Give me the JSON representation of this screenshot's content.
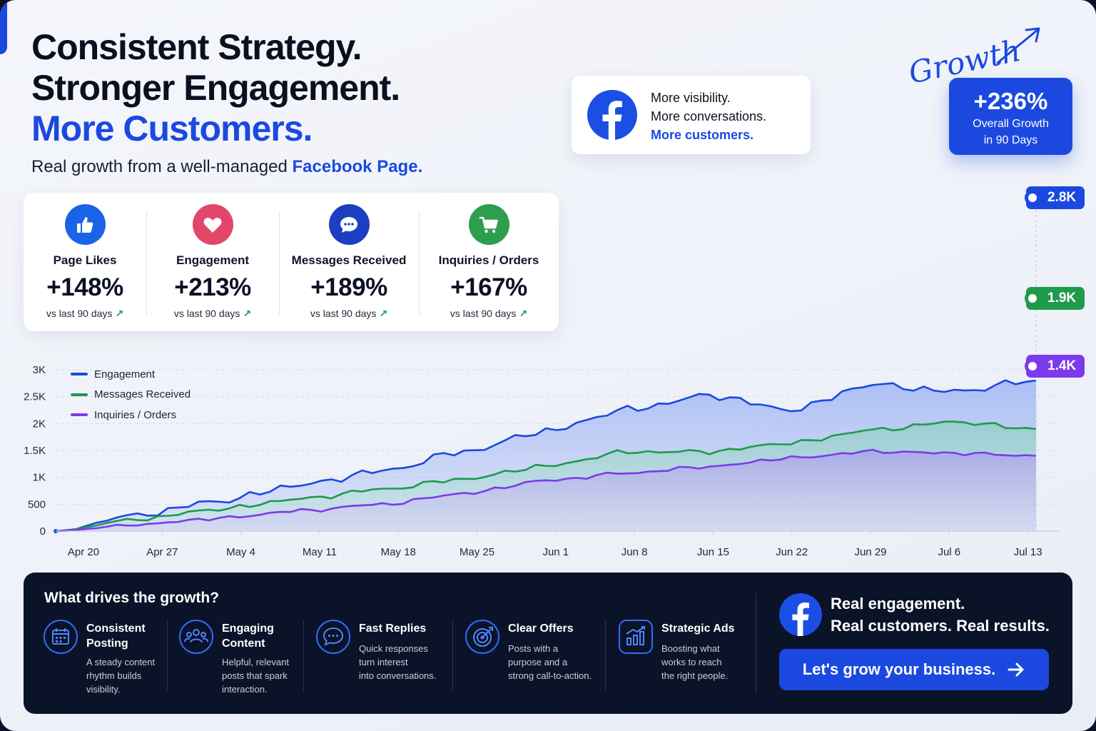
{
  "header": {
    "title_line1": "Consistent Strategy.",
    "title_line2": "Stronger Engagement.",
    "title_line3": "More Customers.",
    "subtitle_prefix": "Real growth from a well-managed ",
    "subtitle_accent": "Facebook Page."
  },
  "callout": {
    "line1": "More visibility.",
    "line2": "More conversations.",
    "line3": "More customers.",
    "icon": "facebook-logo-icon"
  },
  "growth_badge": {
    "script_text": "Growth",
    "value": "+236%",
    "line1": "Overall Growth",
    "line2": "in 90 Days"
  },
  "stats": [
    {
      "label": "Page Likes",
      "value": "+148%",
      "compare": "vs last 90 days",
      "icon": "thumbs-up-icon",
      "color": "#1b63e6"
    },
    {
      "label": "Engagement",
      "value": "+213%",
      "compare": "vs last 90 days",
      "icon": "heart-icon",
      "color": "#e2476a"
    },
    {
      "label": "Messages Received",
      "value": "+189%",
      "compare": "vs last 90 days",
      "icon": "chat-bubble-icon",
      "color": "#1c3fc1"
    },
    {
      "label": "Inquiries / Orders",
      "value": "+167%",
      "compare": "vs last 90 days",
      "icon": "shopping-cart-icon",
      "color": "#2c9e4e"
    }
  ],
  "chart_data": {
    "type": "area",
    "x": [
      "Apr 20",
      "Apr 27",
      "May 4",
      "May 11",
      "May 18",
      "May 25",
      "Jun 1",
      "Jun 8",
      "Jun 15",
      "Jun 22",
      "Jun 29",
      "Jul 6",
      "Jul 13"
    ],
    "yticks": [
      "0",
      "500",
      "1K",
      "1.5K",
      "2K",
      "2.5K",
      "3K"
    ],
    "ylim": [
      0,
      3000
    ],
    "grid": true,
    "legend_position": "top-left",
    "series": [
      {
        "name": "Engagement",
        "color": "#1b49e0",
        "values": [
          0,
          300,
          560,
          860,
          1120,
          1480,
          1860,
          2260,
          2520,
          2260,
          2720,
          2600,
          2800
        ],
        "end_label": "2.8K"
      },
      {
        "name": "Messages Received",
        "color": "#1f9a4c",
        "values": [
          0,
          220,
          410,
          600,
          780,
          970,
          1210,
          1470,
          1480,
          1640,
          1880,
          2030,
          1900
        ],
        "end_label": "1.9K"
      },
      {
        "name": "Inquiries / Orders",
        "color": "#7c3aed",
        "values": [
          0,
          120,
          240,
          380,
          500,
          700,
          940,
          1080,
          1200,
          1360,
          1480,
          1450,
          1400
        ],
        "end_label": "1.4K"
      }
    ]
  },
  "drivers": {
    "heading": "What drives the growth?",
    "items": [
      {
        "title_line1": "Consistent",
        "title_line2": "Posting",
        "desc": [
          "A steady content",
          "rhythm builds",
          "visibility."
        ],
        "icon": "calendar-icon"
      },
      {
        "title_line1": "Engaging",
        "title_line2": "Content",
        "desc": [
          "Helpful, relevant",
          "posts that spark",
          "interaction."
        ],
        "icon": "people-group-icon"
      },
      {
        "title_line1": "Fast Replies",
        "title_line2": "",
        "desc": [
          "Quick responses",
          "turn interest",
          "into conversations."
        ],
        "icon": "chat-icon"
      },
      {
        "title_line1": "Clear Offers",
        "title_line2": "",
        "desc": [
          "Posts with a",
          "purpose and a",
          "strong call-to-action."
        ],
        "icon": "target-icon"
      },
      {
        "title_line1": "Strategic Ads",
        "title_line2": "",
        "desc": [
          "Boosting what",
          "works to reach",
          "the right people."
        ],
        "icon": "bar-chart-icon"
      }
    ]
  },
  "cta": {
    "line1": "Real engagement.",
    "line2": "Real customers. Real results.",
    "button_label": "Let's grow your business.",
    "icon": "facebook-logo-icon"
  }
}
